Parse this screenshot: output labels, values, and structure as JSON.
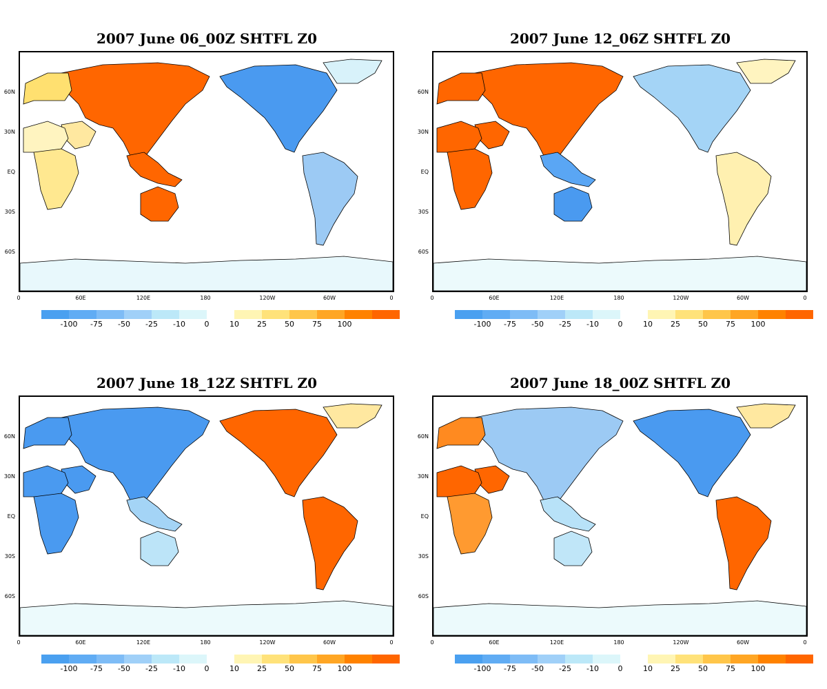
{
  "panels": [
    {
      "title": "2007 June 06_00Z SHTFL Z0",
      "pattern": {
        "eurasia": "#ff6600",
        "europe_west": "#ffe070",
        "arabia": "#ffe8a0",
        "africa_north": "#fff4c0",
        "africa_south": "#ffe890",
        "se_asia": "#ff6600",
        "australia": "#ff6600",
        "north_america": "#4a9af0",
        "south_america": "#9ccaf4",
        "greenland": "#d8f2fa",
        "antarctica": "#e8f8fc"
      }
    },
    {
      "title": "2007 June 12_06Z SHTFL Z0",
      "pattern": {
        "eurasia": "#ff6600",
        "europe_west": "#ff6600",
        "arabia": "#ff6600",
        "africa_north": "#ff6600",
        "africa_south": "#ff6600",
        "se_asia": "#5aa6f4",
        "australia": "#4a9af0",
        "north_america": "#a4d4f6",
        "south_america": "#fff0b0",
        "greenland": "#fff4c0",
        "antarctica": "#ecfafc"
      }
    },
    {
      "title": "2007 June 18_12Z SHTFL Z0",
      "pattern": {
        "eurasia": "#4a9af0",
        "europe_west": "#4a9af0",
        "arabia": "#4a9af0",
        "africa_north": "#4a9af0",
        "africa_south": "#4a9af0",
        "se_asia": "#a4d4f6",
        "australia": "#bce4f8",
        "north_america": "#ff6600",
        "south_america": "#ff6600",
        "greenland": "#ffe8a0",
        "antarctica": "#ecfafc"
      }
    },
    {
      "title": "2007 June 18_00Z SHTFL Z0",
      "pattern": {
        "eurasia": "#9ccaf4",
        "europe_west": "#ff8a20",
        "arabia": "#ff6600",
        "africa_north": "#ff6600",
        "africa_south": "#ff9a30",
        "se_asia": "#b8e2f8",
        "australia": "#c0e6f8",
        "north_america": "#4a9af0",
        "south_america": "#ff6600",
        "greenland": "#ffe8a0",
        "antarctica": "#ecfafc"
      }
    }
  ],
  "axes": {
    "lat_labels": [
      "60N",
      "30N",
      "EQ",
      "30S",
      "60S"
    ],
    "lon_labels": [
      "0",
      "60E",
      "120E",
      "180",
      "120W",
      "60W",
      "0"
    ]
  },
  "colorbar": {
    "negative_colors": [
      "#4aa0f0",
      "#60acf4",
      "#7ebcf6",
      "#a0d0f8",
      "#bce8f8",
      "#dcf6fa"
    ],
    "positive_colors": [
      "#fff5b4",
      "#ffe27a",
      "#ffc64a",
      "#ffa624",
      "#ff8200",
      "#ff6600"
    ],
    "negative_labels": [
      "-100",
      "-75",
      "-50",
      "-25",
      "-10",
      "0"
    ],
    "positive_labels": [
      "10",
      "25",
      "50",
      "75",
      "100"
    ]
  }
}
